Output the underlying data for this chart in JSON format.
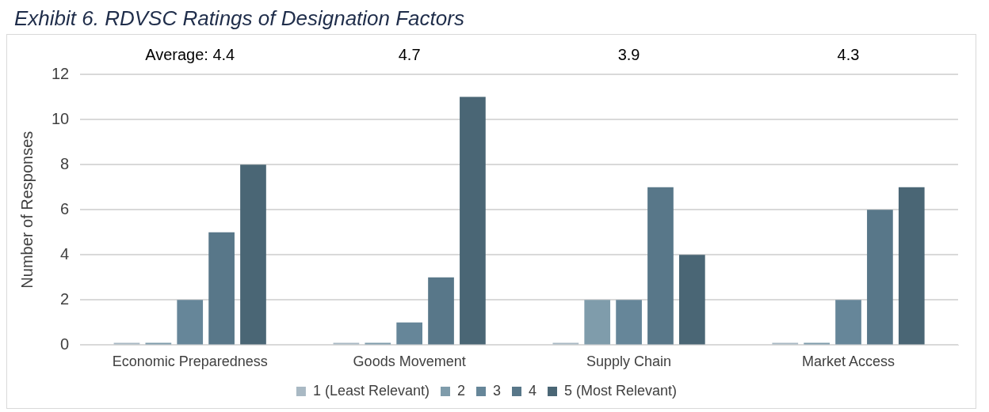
{
  "chart_data": {
    "type": "bar",
    "title": "Exhibit 6. RDVSC Ratings of Designation Factors",
    "ylabel": "Number of Responses",
    "categories": [
      "Economic Preparedness",
      "Goods Movement",
      "Supply Chain",
      "Market Access"
    ],
    "series": [
      {
        "name": "1 (Least Relevant)",
        "color": "#a9b9c4",
        "values": [
          0.1,
          0.1,
          0.1,
          0.1
        ]
      },
      {
        "name": "2",
        "color": "#7f9cab",
        "values": [
          0.1,
          0.1,
          2,
          0.1
        ]
      },
      {
        "name": "3",
        "color": "#668699",
        "values": [
          2,
          1,
          2,
          2
        ]
      },
      {
        "name": "4",
        "color": "#587789",
        "values": [
          5,
          3,
          7,
          6
        ]
      },
      {
        "name": "5 (Most Relevant)",
        "color": "#4a6675",
        "values": [
          8,
          11,
          4,
          7
        ]
      }
    ],
    "ylim": [
      0,
      12
    ],
    "yticks": [
      0,
      2,
      4,
      6,
      8,
      10,
      12
    ],
    "grid": "y",
    "legend": "bottom",
    "annotations": [
      "Average: 4.4",
      "4.7",
      "3.9",
      "4.3"
    ]
  }
}
